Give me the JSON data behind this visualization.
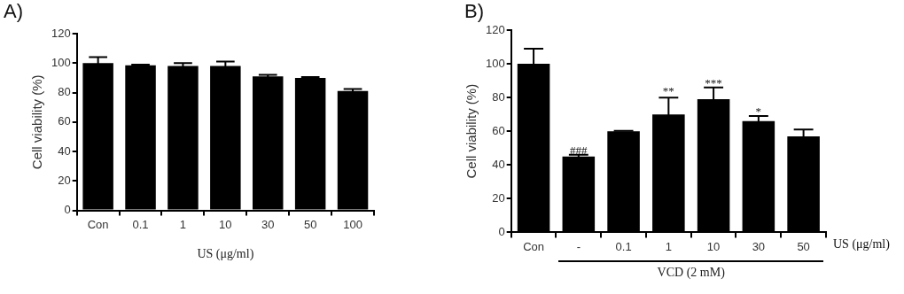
{
  "chart_data": [
    {
      "type": "bar",
      "title": "A)",
      "ylabel": "Cell viability (%)",
      "xlabel": "US (μg/ml)",
      "categories": [
        "Con",
        "0.1",
        "1",
        "10",
        "30",
        "50",
        "100"
      ],
      "values": [
        100,
        98.5,
        98,
        98,
        91,
        90,
        81
      ],
      "errors": [
        4,
        0.5,
        2,
        3,
        1,
        0.5,
        1.5
      ],
      "color": "#000000",
      "ylim": [
        0,
        120
      ],
      "yticks": [
        0,
        20,
        40,
        60,
        80,
        100,
        120
      ],
      "grid": false
    },
    {
      "type": "bar",
      "title": "B)",
      "ylabel": "Cell viability (%)",
      "xlabel": "US (μg/ml)",
      "categories": [
        "Con",
        "-",
        "0.1",
        "1",
        "10",
        "30",
        "50"
      ],
      "values": [
        100,
        45,
        60,
        70,
        79,
        66,
        57
      ],
      "errors": [
        9,
        1,
        0.3,
        10,
        7,
        3,
        4
      ],
      "color": "#000000",
      "ylim": [
        0,
        120
      ],
      "yticks": [
        0,
        20,
        40,
        60,
        80,
        100,
        120
      ],
      "grid": false,
      "annotations": [
        {
          "text": "###",
          "x": "-",
          "y": 47
        },
        {
          "text": "**",
          "x": "1",
          "y": 82
        },
        {
          "text": "***",
          "x": "10",
          "y": 87
        },
        {
          "text": "*",
          "x": "30",
          "y": 70
        },
        "VCD (2 mM)"
      ]
    }
  ]
}
